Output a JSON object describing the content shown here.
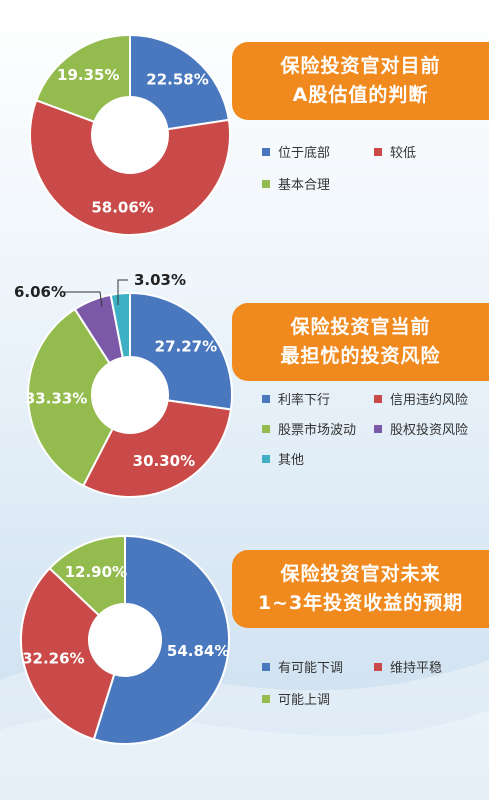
{
  "chart_data": [
    {
      "type": "pie",
      "title_lines": [
        "保险投资官对目前",
        "A股估值的判断"
      ],
      "categories": [
        "位于底部",
        "较低",
        "基本合理"
      ],
      "values": [
        22.58,
        58.06,
        19.35
      ],
      "labels": [
        "22.58%",
        "58.06%",
        "19.35%"
      ],
      "colors": [
        "#4a78bf",
        "#c94a48",
        "#93bb4e"
      ],
      "legend_position": "right"
    },
    {
      "type": "pie",
      "title_lines": [
        "保险投资官当前",
        "最担忧的投资风险"
      ],
      "categories": [
        "利率下行",
        "信用违约风险",
        "股票市场波动",
        "股权投资风险",
        "其他"
      ],
      "values": [
        27.27,
        30.3,
        33.33,
        6.06,
        3.03
      ],
      "labels": [
        "27.27%",
        "30.30%",
        "33.33%",
        "6.06%",
        "3.03%"
      ],
      "colors": [
        "#4a78bf",
        "#c94a48",
        "#93bb4e",
        "#7b59a8",
        "#3eb0c4"
      ],
      "legend_position": "right"
    },
    {
      "type": "pie",
      "title_lines": [
        "保险投资官对未来",
        "1~3年投资收益的预期"
      ],
      "categories": [
        "有可能下调",
        "维持平稳",
        "可能上调"
      ],
      "values": [
        54.84,
        32.26,
        12.9
      ],
      "labels": [
        "54.84%",
        "32.26%",
        "12.90%"
      ],
      "colors": [
        "#4a78bf",
        "#c94a48",
        "#93bb4e"
      ],
      "legend_position": "right"
    }
  ]
}
